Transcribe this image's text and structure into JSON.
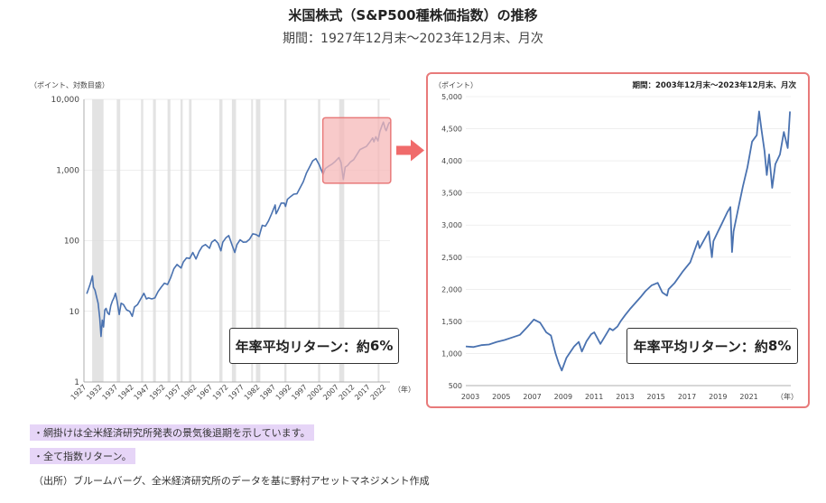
{
  "title": "米国株式（S&P500種株価指数）の推移",
  "subtitle": "期間：1927年12月末～2023年12月末、月次",
  "notes": [
    "・網掛けは全米経済研究所発表の景気後退期を示しています。",
    "・全て指数リターン。",
    "（出所）ブルームバーグ、全米経済研究所のデータを基に野村アセットマネジメント作成"
  ],
  "colors": {
    "line": "#4a72b0",
    "recession": "#e3e3e3",
    "highlight_fill": "#f5b8b8",
    "highlight_border": "#e87a7a",
    "arrow": "#f06b6b",
    "note_bg": "#e6d5f7"
  },
  "chart_data": [
    {
      "type": "line",
      "scale": "log",
      "ylabel": "（ポイント、対数目盛）",
      "xlabel": "（年）",
      "ylim": [
        1,
        10000
      ],
      "xlim": [
        1927,
        2024
      ],
      "y_ticks": [
        1,
        10,
        100,
        1000,
        10000
      ],
      "y_tick_labels": [
        "1",
        "10",
        "100",
        "1,000",
        "10,000"
      ],
      "x_ticks": [
        1927,
        1932,
        1937,
        1942,
        1947,
        1952,
        1957,
        1962,
        1967,
        1972,
        1977,
        1982,
        1987,
        1992,
        1997,
        2002,
        2007,
        2012,
        2017,
        2022
      ],
      "x_tick_labels": [
        "1927",
        "1932",
        "1937",
        "1942",
        "1947",
        "1952",
        "1957",
        "1962",
        "1967",
        "1972",
        "1977",
        "1982",
        "1987",
        "1992",
        "1997",
        "2002",
        "2007",
        "2012",
        "2017",
        "2022"
      ],
      "recessions": [
        [
          1929.6,
          1933.2
        ],
        [
          1937.4,
          1938.5
        ],
        [
          1945.1,
          1945.8
        ],
        [
          1948.9,
          1949.8
        ],
        [
          1953.5,
          1954.4
        ],
        [
          1957.6,
          1958.3
        ],
        [
          1960.3,
          1961.1
        ],
        [
          1969.9,
          1970.9
        ],
        [
          1973.9,
          1975.2
        ],
        [
          1980.0,
          1980.5
        ],
        [
          1981.5,
          1982.9
        ],
        [
          1990.5,
          1991.2
        ],
        [
          2001.2,
          2001.9
        ],
        [
          2007.9,
          2009.5
        ],
        [
          2020.1,
          2020.3
        ]
      ],
      "series": [
        {
          "x": [
            1927.9,
            1928.5,
            1929.0,
            1929.7,
            1930.0,
            1930.5,
            1931.0,
            1931.5,
            1932.0,
            1932.4,
            1932.8,
            1933.2,
            1933.6,
            1934.0,
            1934.5,
            1935.0,
            1935.5,
            1936.0,
            1936.5,
            1937.0,
            1937.5,
            1938.2,
            1938.8,
            1939.5,
            1940.5,
            1941.5,
            1942.3,
            1943.0,
            1944.0,
            1945.0,
            1946.0,
            1946.8,
            1947.5,
            1948.5,
            1949.5,
            1950.5,
            1951.5,
            1952.5,
            1953.5,
            1954.5,
            1955.5,
            1956.5,
            1957.8,
            1958.5,
            1959.5,
            1960.5,
            1961.5,
            1962.5,
            1963.5,
            1964.5,
            1965.5,
            1966.8,
            1967.5,
            1968.5,
            1969.5,
            1970.4,
            1971.0,
            1972.0,
            1972.9,
            1974.0,
            1974.8,
            1975.5,
            1976.5,
            1977.5,
            1978.5,
            1979.5,
            1980.5,
            1981.5,
            1982.5,
            1983.5,
            1984.5,
            1985.5,
            1986.5,
            1987.6,
            1987.9,
            1988.5,
            1989.5,
            1990.5,
            1990.9,
            1991.5,
            1992.5,
            1993.5,
            1994.5,
            1995.5,
            1996.5,
            1997.5,
            1998.5,
            1999.5,
            2000.5,
            2001.5,
            2002.8,
            2003.5,
            2004.5,
            2005.5,
            2006.5,
            2007.8,
            2008.5,
            2009.2,
            2009.8,
            2010.5,
            2011.5,
            2012.5,
            2013.5,
            2014.5,
            2015.5,
            2016.5,
            2017.5,
            2018.5,
            2018.9,
            2019.5,
            2020.2,
            2020.8,
            2021.5,
            2021.9,
            2022.5,
            2022.8,
            2023.5,
            2023.9
          ],
          "values": [
            17.7,
            21.0,
            24.5,
            31.7,
            22.0,
            20.0,
            16.0,
            13.0,
            8.0,
            4.4,
            7.5,
            6.0,
            10.5,
            11.0,
            9.5,
            9.0,
            12.0,
            14.0,
            15.5,
            18.0,
            14.0,
            9.0,
            13.0,
            12.5,
            10.5,
            10.0,
            8.5,
            11.5,
            12.5,
            15.0,
            18.0,
            15.0,
            15.5,
            15.0,
            15.5,
            19.0,
            22.0,
            25.0,
            24.0,
            30.0,
            40.0,
            46.0,
            41.0,
            50.0,
            57.0,
            56.0,
            68.0,
            55.0,
            70.0,
            83.0,
            88.0,
            78.0,
            95.0,
            103.0,
            92.0,
            72.0,
            95.0,
            110.0,
            118.0,
            85.0,
            68.0,
            88.0,
            103.0,
            95.0,
            96.0,
            105.0,
            125.0,
            122.0,
            115.0,
            165.0,
            160.0,
            190.0,
            240.0,
            320.0,
            240.0,
            270.0,
            340.0,
            340.0,
            305.0,
            385.0,
            420.0,
            455.0,
            460.0,
            560.0,
            680.0,
            900.0,
            1100.0,
            1350.0,
            1450.0,
            1200.0,
            870.0,
            1050.0,
            1130.0,
            1200.0,
            1300.0,
            1500.0,
            1270.0,
            735.0,
            1100.0,
            1150.0,
            1300.0,
            1400.0,
            1650.0,
            1950.0,
            2050.0,
            2150.0,
            2450.0,
            2850.0,
            2500.0,
            2950.0,
            2580.0,
            3500.0,
            4300.0,
            4770.0,
            3800.0,
            3600.0,
            4450.0,
            4770.0
          ]
        }
      ]
    },
    {
      "type": "line",
      "scale": "linear",
      "ylabel": "（ポイント）",
      "xlabel": "（年）",
      "annotation": "期間：2003年12月末～2023年12月末、月次",
      "ylim": [
        500,
        5000
      ],
      "xlim": [
        2003,
        2024
      ],
      "y_ticks": [
        500,
        1000,
        1500,
        2000,
        2500,
        3000,
        3500,
        4000,
        4500,
        5000
      ],
      "y_tick_labels": [
        "500",
        "1,000",
        "1,500",
        "2,000",
        "2,500",
        "3,000",
        "3,500",
        "4,000",
        "4,500",
        "5,000"
      ],
      "x_ticks": [
        2003,
        2005,
        2007,
        2009,
        2011,
        2013,
        2015,
        2017,
        2019,
        2021
      ],
      "x_tick_labels": [
        "2003",
        "2005",
        "2007",
        "2009",
        "2011",
        "2013",
        "2015",
        "2017",
        "2019",
        "2021"
      ],
      "series": [
        {
          "x": [
            2003.0,
            2003.5,
            2004.0,
            2004.5,
            2005.0,
            2005.5,
            2006.0,
            2006.5,
            2007.0,
            2007.4,
            2007.8,
            2008.2,
            2008.5,
            2008.8,
            2009.0,
            2009.2,
            2009.5,
            2009.8,
            2010.0,
            2010.3,
            2010.5,
            2010.8,
            2011.1,
            2011.3,
            2011.7,
            2012.0,
            2012.3,
            2012.5,
            2012.8,
            2013.0,
            2013.3,
            2013.6,
            2014.0,
            2014.3,
            2014.6,
            2015.0,
            2015.4,
            2015.7,
            2016.0,
            2016.1,
            2016.5,
            2017.0,
            2017.5,
            2018.0,
            2018.1,
            2018.7,
            2018.9,
            2019.0,
            2019.3,
            2019.5,
            2019.9,
            2020.1,
            2020.2,
            2020.3,
            2020.6,
            2020.9,
            2021.2,
            2021.5,
            2021.8,
            2021.95,
            2022.1,
            2022.3,
            2022.45,
            2022.6,
            2022.8,
            2023.0,
            2023.3,
            2023.55,
            2023.8,
            2023.95
          ],
          "values": [
            1110,
            1100,
            1130,
            1140,
            1180,
            1210,
            1250,
            1290,
            1420,
            1530,
            1480,
            1330,
            1280,
            1000,
            850,
            735,
            930,
            1040,
            1110,
            1180,
            1030,
            1190,
            1300,
            1330,
            1150,
            1270,
            1390,
            1360,
            1420,
            1500,
            1600,
            1690,
            1800,
            1880,
            1970,
            2060,
            2100,
            1950,
            1900,
            2000,
            2100,
            2270,
            2420,
            2750,
            2640,
            2900,
            2500,
            2750,
            2900,
            3000,
            3200,
            3280,
            2580,
            2900,
            3250,
            3600,
            3900,
            4300,
            4400,
            4770,
            4500,
            4150,
            3780,
            4100,
            3580,
            3950,
            4100,
            4450,
            4200,
            4770
          ]
        }
      ]
    }
  ],
  "returns": {
    "left": {
      "label": "年率平均リターン：約",
      "value": "6%"
    },
    "right": {
      "label": "年率平均リターン：約",
      "value": "8%"
    }
  }
}
